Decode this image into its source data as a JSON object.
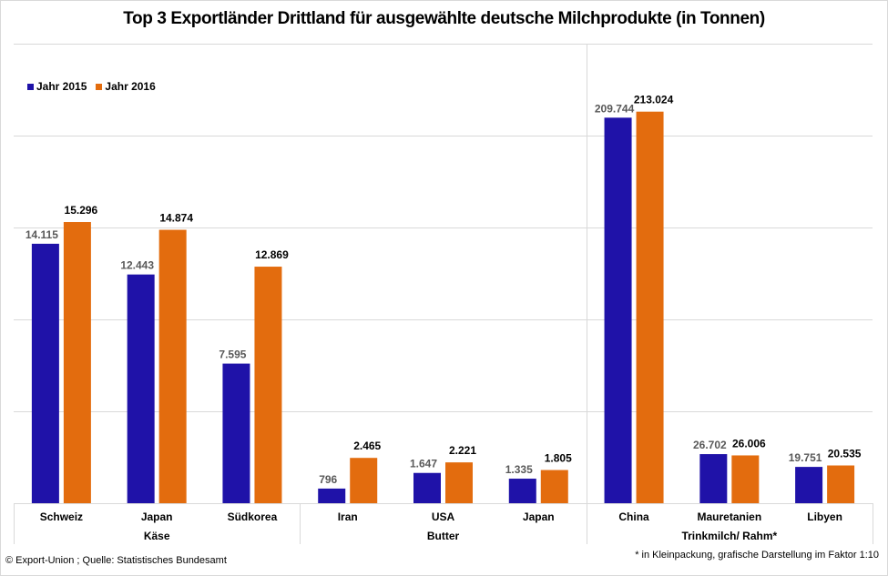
{
  "chart_data": {
    "type": "bar",
    "title": "Top 3 Exportländer Drittland für ausgewählte deutsche Milchprodukte (in Tonnen)",
    "xlabel": "",
    "ylabel": "",
    "ylim": [
      0,
      25000
    ],
    "grid": true,
    "gridline_step": 5000,
    "legend_position": "top-left",
    "groups": [
      {
        "name": "Käse",
        "categories": [
          "Schweiz",
          "Japan",
          "Südkorea"
        ],
        "scale_factor": 1
      },
      {
        "name": "Butter",
        "categories": [
          "Iran",
          "USA",
          "Japan"
        ],
        "scale_factor": 1
      },
      {
        "name": "Trinkmilch/ Rahm*",
        "categories": [
          "China",
          "Mauretanien",
          "Libyen"
        ],
        "scale_factor": 0.1
      }
    ],
    "categories": [
      "Schweiz",
      "Japan",
      "Südkorea",
      "Iran",
      "USA",
      "Japan",
      "China",
      "Mauretanien",
      "Libyen"
    ],
    "series": [
      {
        "name": "Jahr 2015",
        "color": "#1f12a8",
        "values": [
          14115,
          12443,
          7595,
          796,
          1647,
          1335,
          209744,
          26702,
          19751
        ],
        "labels": [
          "14.115",
          "12.443",
          "7.595",
          "796",
          "1.647",
          "1.335",
          "209.744",
          "26.702",
          "19.751"
        ]
      },
      {
        "name": "Jahr 2016",
        "color": "#e36c0e",
        "values": [
          15296,
          14874,
          12869,
          2465,
          2221,
          1805,
          213024,
          26006,
          20535
        ],
        "labels": [
          "15.296",
          "14.874",
          "12.869",
          "2.465",
          "2.221",
          "1.805",
          "213.024",
          "26.006",
          "20.535"
        ]
      }
    ]
  },
  "footer": {
    "source": "© Export-Union ; Quelle:  Statistisches Bundesamt",
    "note": "* in Kleinpackung, grafische Darstellung im Faktor 1:10"
  }
}
